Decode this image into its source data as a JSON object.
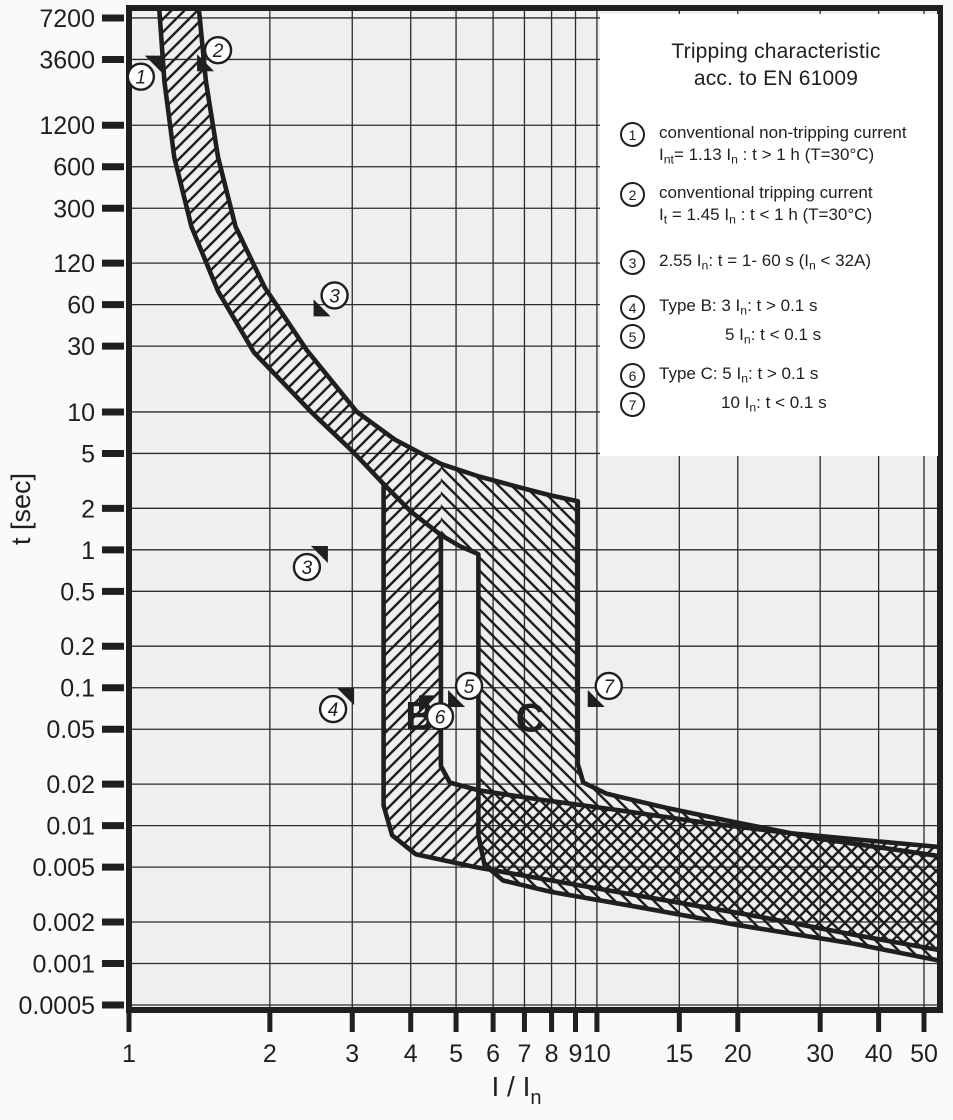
{
  "colors": {
    "ink": "#1f1f1f",
    "grid": "#2e2c2a",
    "plot_bg": "#f0efed",
    "page_bg": "#fafaf8",
    "legend_bg": "#ffffff"
  },
  "legend": {
    "title_line1": "Tripping characteristic",
    "title_line2": "acc. to EN 61009",
    "items": [
      {
        "num": "1",
        "indent": 0,
        "lines": [
          [
            {
              "t": "conventional non-tripping current"
            }
          ],
          [
            {
              "t": "I"
            },
            {
              "s": "nt"
            },
            {
              "t": "= 1.13 I"
            },
            {
              "s": "n"
            },
            {
              "t": " : t > 1 h   (T=30°C)"
            }
          ]
        ]
      },
      {
        "num": "2",
        "indent": 0,
        "lines": [
          [
            {
              "t": "conventional tripping current"
            }
          ],
          [
            {
              "t": "I"
            },
            {
              "s": "t"
            },
            {
              "t": " = 1.45 I"
            },
            {
              "s": "n"
            },
            {
              "t": " : t < 1 h   (T=30°C)"
            }
          ]
        ]
      },
      {
        "num": "3",
        "indent": 0,
        "lines": [
          [
            {
              "t": "2.55 I"
            },
            {
              "s": "n"
            },
            {
              "t": ": t = 1- 60 s (I"
            },
            {
              "s": "n"
            },
            {
              "t": " < 32A)"
            }
          ]
        ]
      },
      {
        "num": "4",
        "indent": 0,
        "lines": [
          [
            {
              "t": "Type B: 3 I"
            },
            {
              "s": "n"
            },
            {
              "t": ": t > 0.1 s"
            }
          ]
        ]
      },
      {
        "num": "5",
        "indent": 66,
        "lines": [
          [
            {
              "t": "5 I"
            },
            {
              "s": "n"
            },
            {
              "t": ": t < 0.1 s"
            }
          ]
        ]
      },
      {
        "num": "6",
        "indent": 0,
        "lines": [
          [
            {
              "t": "Type C: 5 I"
            },
            {
              "s": "n"
            },
            {
              "t": ": t > 0.1 s"
            }
          ]
        ]
      },
      {
        "num": "7",
        "indent": 62,
        "lines": [
          [
            {
              "t": "10 I"
            },
            {
              "s": "n"
            },
            {
              "t": ": t < 0.1 s"
            }
          ]
        ]
      }
    ]
  },
  "chart_data": {
    "type": "area",
    "title": "Tripping characteristic acc. to EN 61009",
    "xlabel_main": "I / I",
    "xlabel_sub": "n",
    "ylabel": "t [sec]",
    "x_ticks": [
      1,
      2,
      3,
      4,
      5,
      6,
      7,
      8,
      9,
      10,
      15,
      20,
      30,
      40,
      50
    ],
    "y_ticks": [
      7200,
      3600,
      1200,
      600,
      300,
      120,
      60,
      30,
      10,
      5,
      2,
      1,
      0.5,
      0.2,
      0.1,
      0.05,
      0.02,
      0.01,
      0.005,
      0.002,
      0.001,
      0.0005
    ],
    "xlim": [
      1,
      54.1
    ],
    "ylim": [
      0.00046,
      8500
    ],
    "grid": true,
    "legend_position": "top-right",
    "curves": {
      "lower_thermal_1p13In": {
        "head": [
          [
            1.16,
            8500
          ],
          [
            1.19,
            2500
          ],
          [
            1.25,
            700
          ],
          [
            1.36,
            220
          ],
          [
            1.55,
            75
          ],
          [
            1.85,
            27
          ],
          [
            2.45,
            10
          ],
          [
            3.0,
            5.2
          ],
          [
            3.5,
            3.0
          ]
        ],
        "mid": [
          [
            3.5,
            3.0
          ],
          [
            4.0,
            1.9
          ],
          [
            4.64,
            1.28
          ],
          [
            5.1,
            1.06
          ],
          [
            5.58,
            0.93
          ]
        ],
        "tail": [
          [
            5.58,
            0.93
          ],
          [
            5.58,
            0.0085
          ],
          [
            5.75,
            0.0052
          ],
          [
            6.3,
            0.004
          ],
          [
            8,
            0.0033
          ],
          [
            12,
            0.0026
          ],
          [
            20,
            0.0019
          ],
          [
            35,
            0.0014
          ],
          [
            54,
            0.00105
          ]
        ]
      },
      "upper_thermal_1p45In": {
        "head": [
          [
            1.41,
            8500
          ],
          [
            1.46,
            2500
          ],
          [
            1.55,
            700
          ],
          [
            1.69,
            220
          ],
          [
            1.95,
            80
          ],
          [
            2.4,
            28
          ],
          [
            3.07,
            10
          ],
          [
            3.7,
            6.3
          ],
          [
            4.64,
            4.2
          ]
        ],
        "mid": [
          [
            4.64,
            4.2
          ],
          [
            5.6,
            3.4
          ],
          [
            6.8,
            2.85
          ],
          [
            7.9,
            2.5
          ],
          [
            9.1,
            2.25
          ]
        ],
        "tail": [
          [
            9.1,
            2.25
          ],
          [
            9.1,
            0.028
          ],
          [
            9.35,
            0.0205
          ],
          [
            10.5,
            0.017
          ],
          [
            14,
            0.0135
          ],
          [
            20,
            0.0105
          ],
          [
            30,
            0.008
          ],
          [
            42,
            0.0068
          ],
          [
            54,
            0.006
          ]
        ]
      },
      "type_B_lower_3In": [
        [
          3.5,
          3.0
        ],
        [
          3.5,
          0.014
        ],
        [
          3.65,
          0.0085
        ],
        [
          4.1,
          0.0062
        ],
        [
          5.5,
          0.005
        ],
        [
          8,
          0.004
        ],
        [
          13,
          0.003
        ],
        [
          22,
          0.0022
        ],
        [
          36,
          0.0016
        ],
        [
          54,
          0.00125
        ]
      ],
      "type_B_upper_5In": [
        [
          4.64,
          1.28
        ],
        [
          4.64,
          0.027
        ],
        [
          4.85,
          0.0205
        ],
        [
          5.6,
          0.018
        ],
        [
          7.5,
          0.0155
        ],
        [
          11,
          0.013
        ],
        [
          17,
          0.0105
        ],
        [
          26,
          0.0088
        ],
        [
          38,
          0.0078
        ],
        [
          54,
          0.007
        ]
      ]
    },
    "bands": [
      {
        "name": "thermal-and-type-B-band",
        "hatch": "forward"
      },
      {
        "name": "type-C-band",
        "hatch": "backward"
      }
    ],
    "annotations": [
      {
        "label": "1",
        "x": 1.06,
        "t": 2700,
        "dir": "ne"
      },
      {
        "label": "2",
        "x": 1.55,
        "t": 4200,
        "dir": "sw"
      },
      {
        "label": "3",
        "x": 2.75,
        "t": 70,
        "dir": "sw"
      },
      {
        "label": "3",
        "x": 2.4,
        "t": 0.75,
        "dir": "ne"
      },
      {
        "label": "4",
        "x": 2.73,
        "t": 0.07,
        "dir": "ne"
      },
      {
        "label": "5",
        "x": 5.33,
        "t": 0.103,
        "dir": "sw"
      },
      {
        "label": "6",
        "x": 4.62,
        "t": 0.062,
        "dir": "nw"
      },
      {
        "label": "7",
        "x": 10.6,
        "t": 0.103,
        "dir": "sw"
      }
    ],
    "zone_labels": [
      {
        "text": "B",
        "x": 4.18,
        "t": 0.062
      },
      {
        "text": "C",
        "x": 7.2,
        "t": 0.06
      }
    ]
  }
}
